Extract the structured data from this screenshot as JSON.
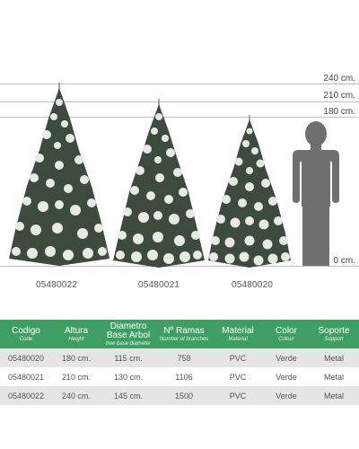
{
  "scale": {
    "labels": [
      "240 cm.",
      "210 cm.",
      "180 cm.",
      "0 cm."
    ]
  },
  "trees": [
    {
      "code": "05480022"
    },
    {
      "code": "05480021"
    },
    {
      "code": "05480020"
    }
  ],
  "colors": {
    "header_green": "#3e9f63",
    "row_alt": "#e5e5e5",
    "scale_line": "#bdbdbd",
    "silhouette": "#6f6f6f"
  },
  "table": {
    "headers": [
      {
        "main": "Codigo",
        "sub": "Code"
      },
      {
        "main": "Altura",
        "sub": "Height"
      },
      {
        "main": "Diametro Base Arbol",
        "sub": "tree base diameter"
      },
      {
        "main": "Nº Ramas",
        "sub": "Number of branches"
      },
      {
        "main": "Material",
        "sub": "Material"
      },
      {
        "main": "Color",
        "sub": "Colour"
      },
      {
        "main": "Soporte",
        "sub": "Support"
      }
    ],
    "rows": [
      [
        "05480020",
        "180 cm.",
        "115 cm.",
        "758",
        "PVC",
        "Verde",
        "Metal"
      ],
      [
        "05480021",
        "210 cm.",
        "130 cm.",
        "1106",
        "PVC",
        "Verde",
        "Metal"
      ],
      [
        "05480022",
        "240 cm.",
        "145 cm.",
        "1500",
        "PVC",
        "Verde",
        "Metal"
      ]
    ]
  }
}
